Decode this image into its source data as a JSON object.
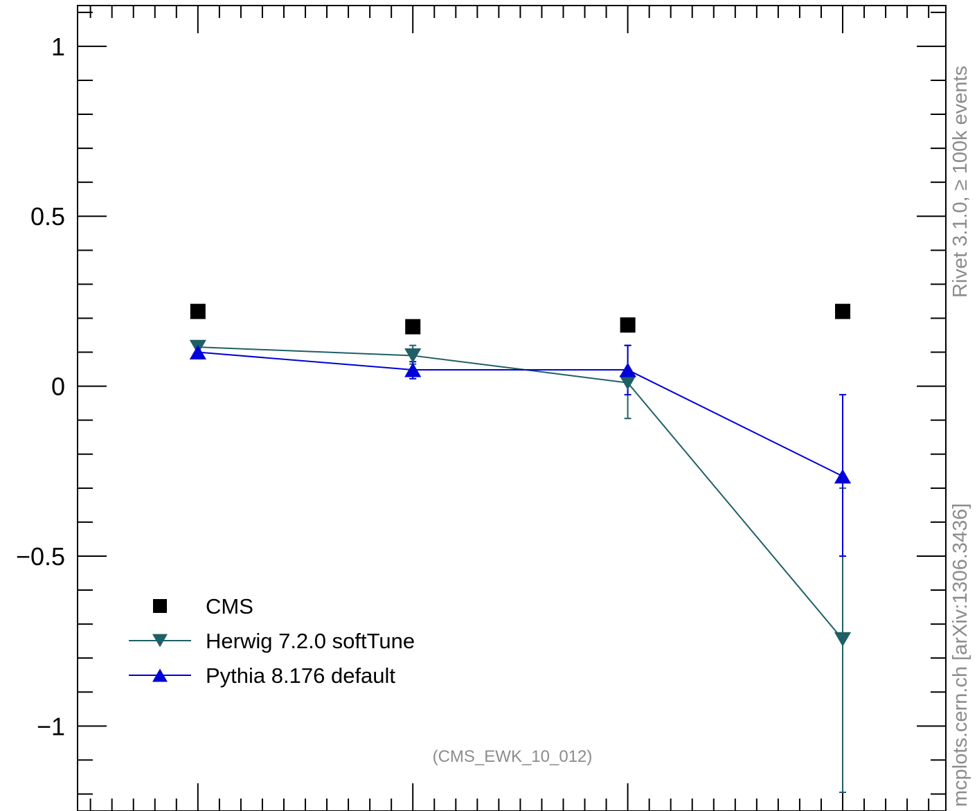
{
  "chart_data": {
    "type": "line",
    "x": [
      1,
      2,
      3,
      4
    ],
    "ylim": [
      -1.25,
      1.12
    ],
    "xlim": [
      0.44,
      4.48
    ],
    "y_ticks": [
      1,
      0.5,
      0,
      -0.5,
      -1
    ],
    "y_tick_labels": [
      "1",
      "0.5",
      "0",
      "−0.5",
      "−1"
    ],
    "series": [
      {
        "name": "CMS",
        "marker": "square",
        "color": "#000000",
        "line": false,
        "values": [
          0.22,
          0.175,
          0.18,
          0.22
        ]
      },
      {
        "name": "Herwig 7.2.0 softTune",
        "marker": "triangle-down",
        "color": "#1f5f66",
        "line": true,
        "values": [
          0.115,
          0.09,
          0.01,
          -0.745
        ],
        "err_low": [
          0.115,
          0.065,
          -0.095,
          -1.195
        ],
        "err_high": [
          0.115,
          0.12,
          0.12,
          -0.3
        ]
      },
      {
        "name": "Pythia 8.176 default",
        "marker": "triangle-up",
        "color": "#0000d8",
        "line": true,
        "values": [
          0.1,
          0.048,
          0.048,
          -0.265
        ],
        "err_low": [
          0.1,
          0.022,
          -0.025,
          -0.5
        ],
        "err_high": [
          0.1,
          0.072,
          0.12,
          -0.025
        ]
      }
    ],
    "annotation": "(CMS_EWK_10_012)",
    "side_label_top": "Rivet 3.1.0, ≥ 100k events",
    "side_label_bottom": "mcplots.cern.ch [arXiv:1306.3436]",
    "legend_placement": "bottom-left",
    "grid": false
  }
}
